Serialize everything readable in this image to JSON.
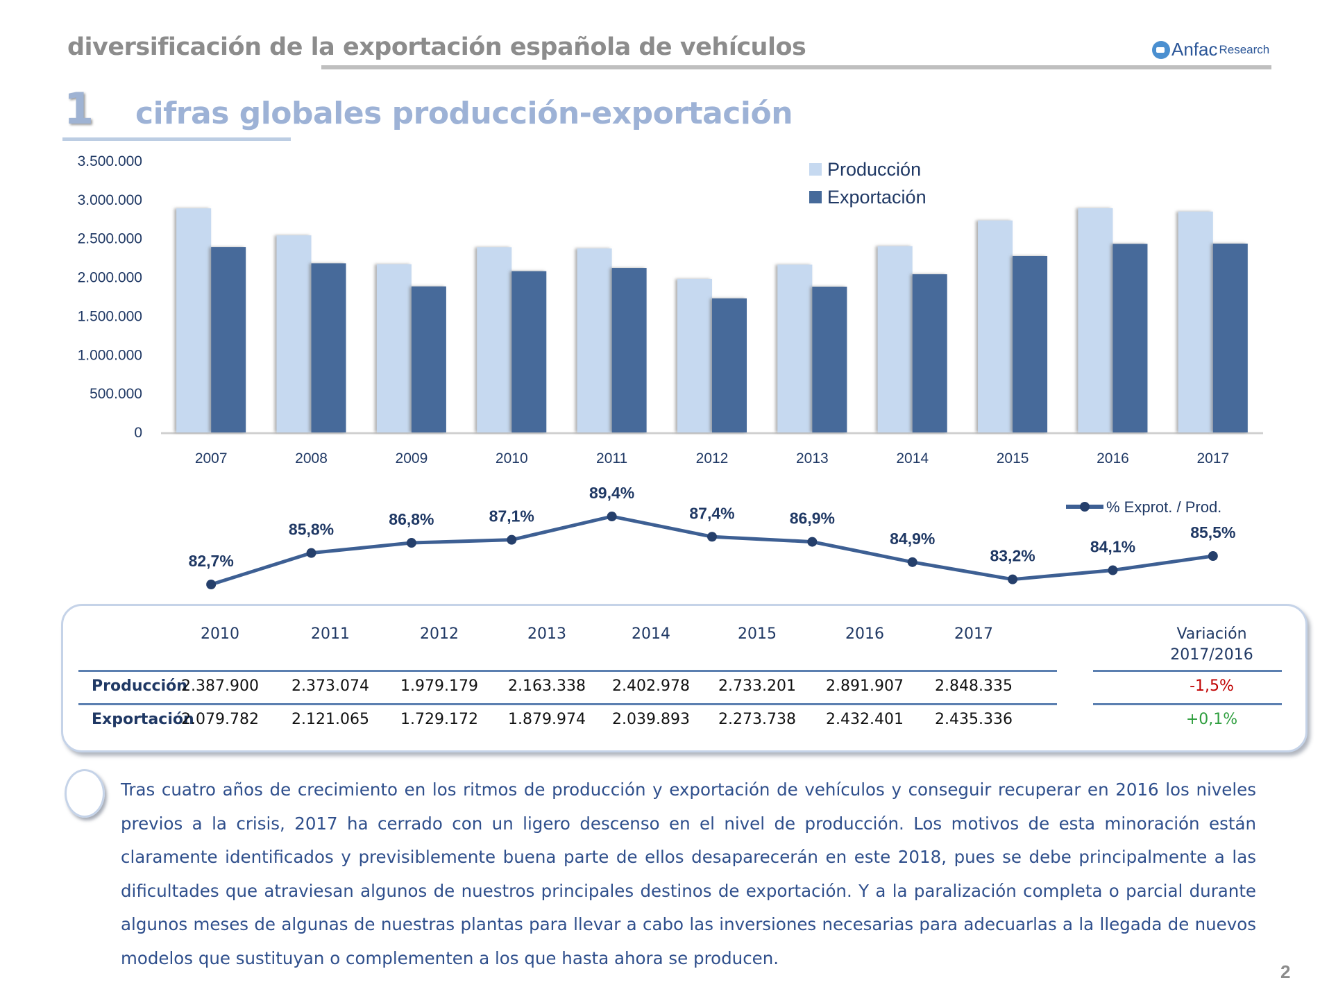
{
  "header": {
    "title": "diversificación de la exportación española de vehículos",
    "logo_brand": "Anfac",
    "logo_sub": "Research"
  },
  "section": {
    "number": "1",
    "title": "cifras globales producción-exportación"
  },
  "chart_data": [
    {
      "type": "bar",
      "title": "",
      "xlabel": "",
      "ylabel": "",
      "categories": [
        "2007",
        "2008",
        "2009",
        "2010",
        "2011",
        "2012",
        "2013",
        "2014",
        "2015",
        "2016",
        "2017"
      ],
      "series": [
        {
          "name": "Producción",
          "color": "#c6d9f0",
          "values": [
            2889703,
            2541644,
            2170078,
            2387900,
            2373074,
            1979179,
            2163338,
            2402978,
            2733201,
            2891907,
            2848335
          ]
        },
        {
          "name": "Exportación",
          "color": "#466a9a",
          "values": [
            2389440,
            2180961,
            1883325,
            2079782,
            2121065,
            1729172,
            1879974,
            2039893,
            2273738,
            2432401,
            2435336
          ]
        }
      ],
      "ylim": [
        0,
        3500000
      ],
      "yticks": [
        "0",
        "500.000",
        "1.000.000",
        "1.500.000",
        "2.000.000",
        "2.500.000",
        "3.000.000",
        "3.500.000"
      ],
      "ytick_values": [
        0,
        500000,
        1000000,
        1500000,
        2000000,
        2500000,
        3000000,
        3500000
      ],
      "grid": false,
      "legend": "top-right"
    },
    {
      "type": "line",
      "title": "",
      "categories": [
        "2007",
        "2008",
        "2009",
        "2010",
        "2011",
        "2012",
        "2013",
        "2014",
        "2015",
        "2016",
        "2017"
      ],
      "series": [
        {
          "name": "% Exprot. / Prod.",
          "color": "#3d5f93",
          "values": [
            82.7,
            85.8,
            86.8,
            87.1,
            89.4,
            87.4,
            86.9,
            84.9,
            83.2,
            84.1,
            85.5
          ],
          "labels": [
            "82,7%",
            "85,8%",
            "86,8%",
            "87,1%",
            "89,4%",
            "87,4%",
            "86,9%",
            "84,9%",
            "83,2%",
            "84,1%",
            "85,5%"
          ]
        }
      ],
      "ylim": [
        80,
        92
      ],
      "legend": "top-right"
    }
  ],
  "table": {
    "years": [
      "2010",
      "2011",
      "2012",
      "2013",
      "2014",
      "2015",
      "2016",
      "2017"
    ],
    "variation_header_1": "Variación",
    "variation_header_2": "2017/2016",
    "rows": [
      {
        "label": "Producción",
        "values": [
          "2.387.900",
          "2.373.074",
          "1.979.179",
          "2.163.338",
          "2.402.978",
          "2.733.201",
          "2.891.907",
          "2.848.335"
        ],
        "variation": "-1,5%",
        "variation_color": "#c00000"
      },
      {
        "label": "Exportación",
        "values": [
          "2.079.782",
          "2.121.065",
          "1.729.172",
          "1.879.974",
          "2.039.893",
          "2.273.738",
          "2.432.401",
          "2.435.336"
        ],
        "variation": "+0,1%",
        "variation_color": "#2e9e3e"
      }
    ]
  },
  "paragraph": "Tras cuatro años de crecimiento en los ritmos de producción y exportación de vehículos y conseguir recuperar en 2016 los niveles previos a la crisis, 2017 ha cerrado con un ligero descenso en el nivel de producción. Los motivos de esta minoración están claramente identificados y previsiblemente buena parte de ellos desaparecerán en este 2018, pues se debe principalmente a las dificultades que atraviesan algunos de nuestros principales destinos de exportación. Y a la paralización completa o parcial durante algunos meses de algunas de nuestras plantas para llevar a cabo las inversiones necesarias para adecuarlas a la llegada de nuevos modelos que sustituyan o complementen a los que hasta ahora se producen.",
  "page_number": "2"
}
